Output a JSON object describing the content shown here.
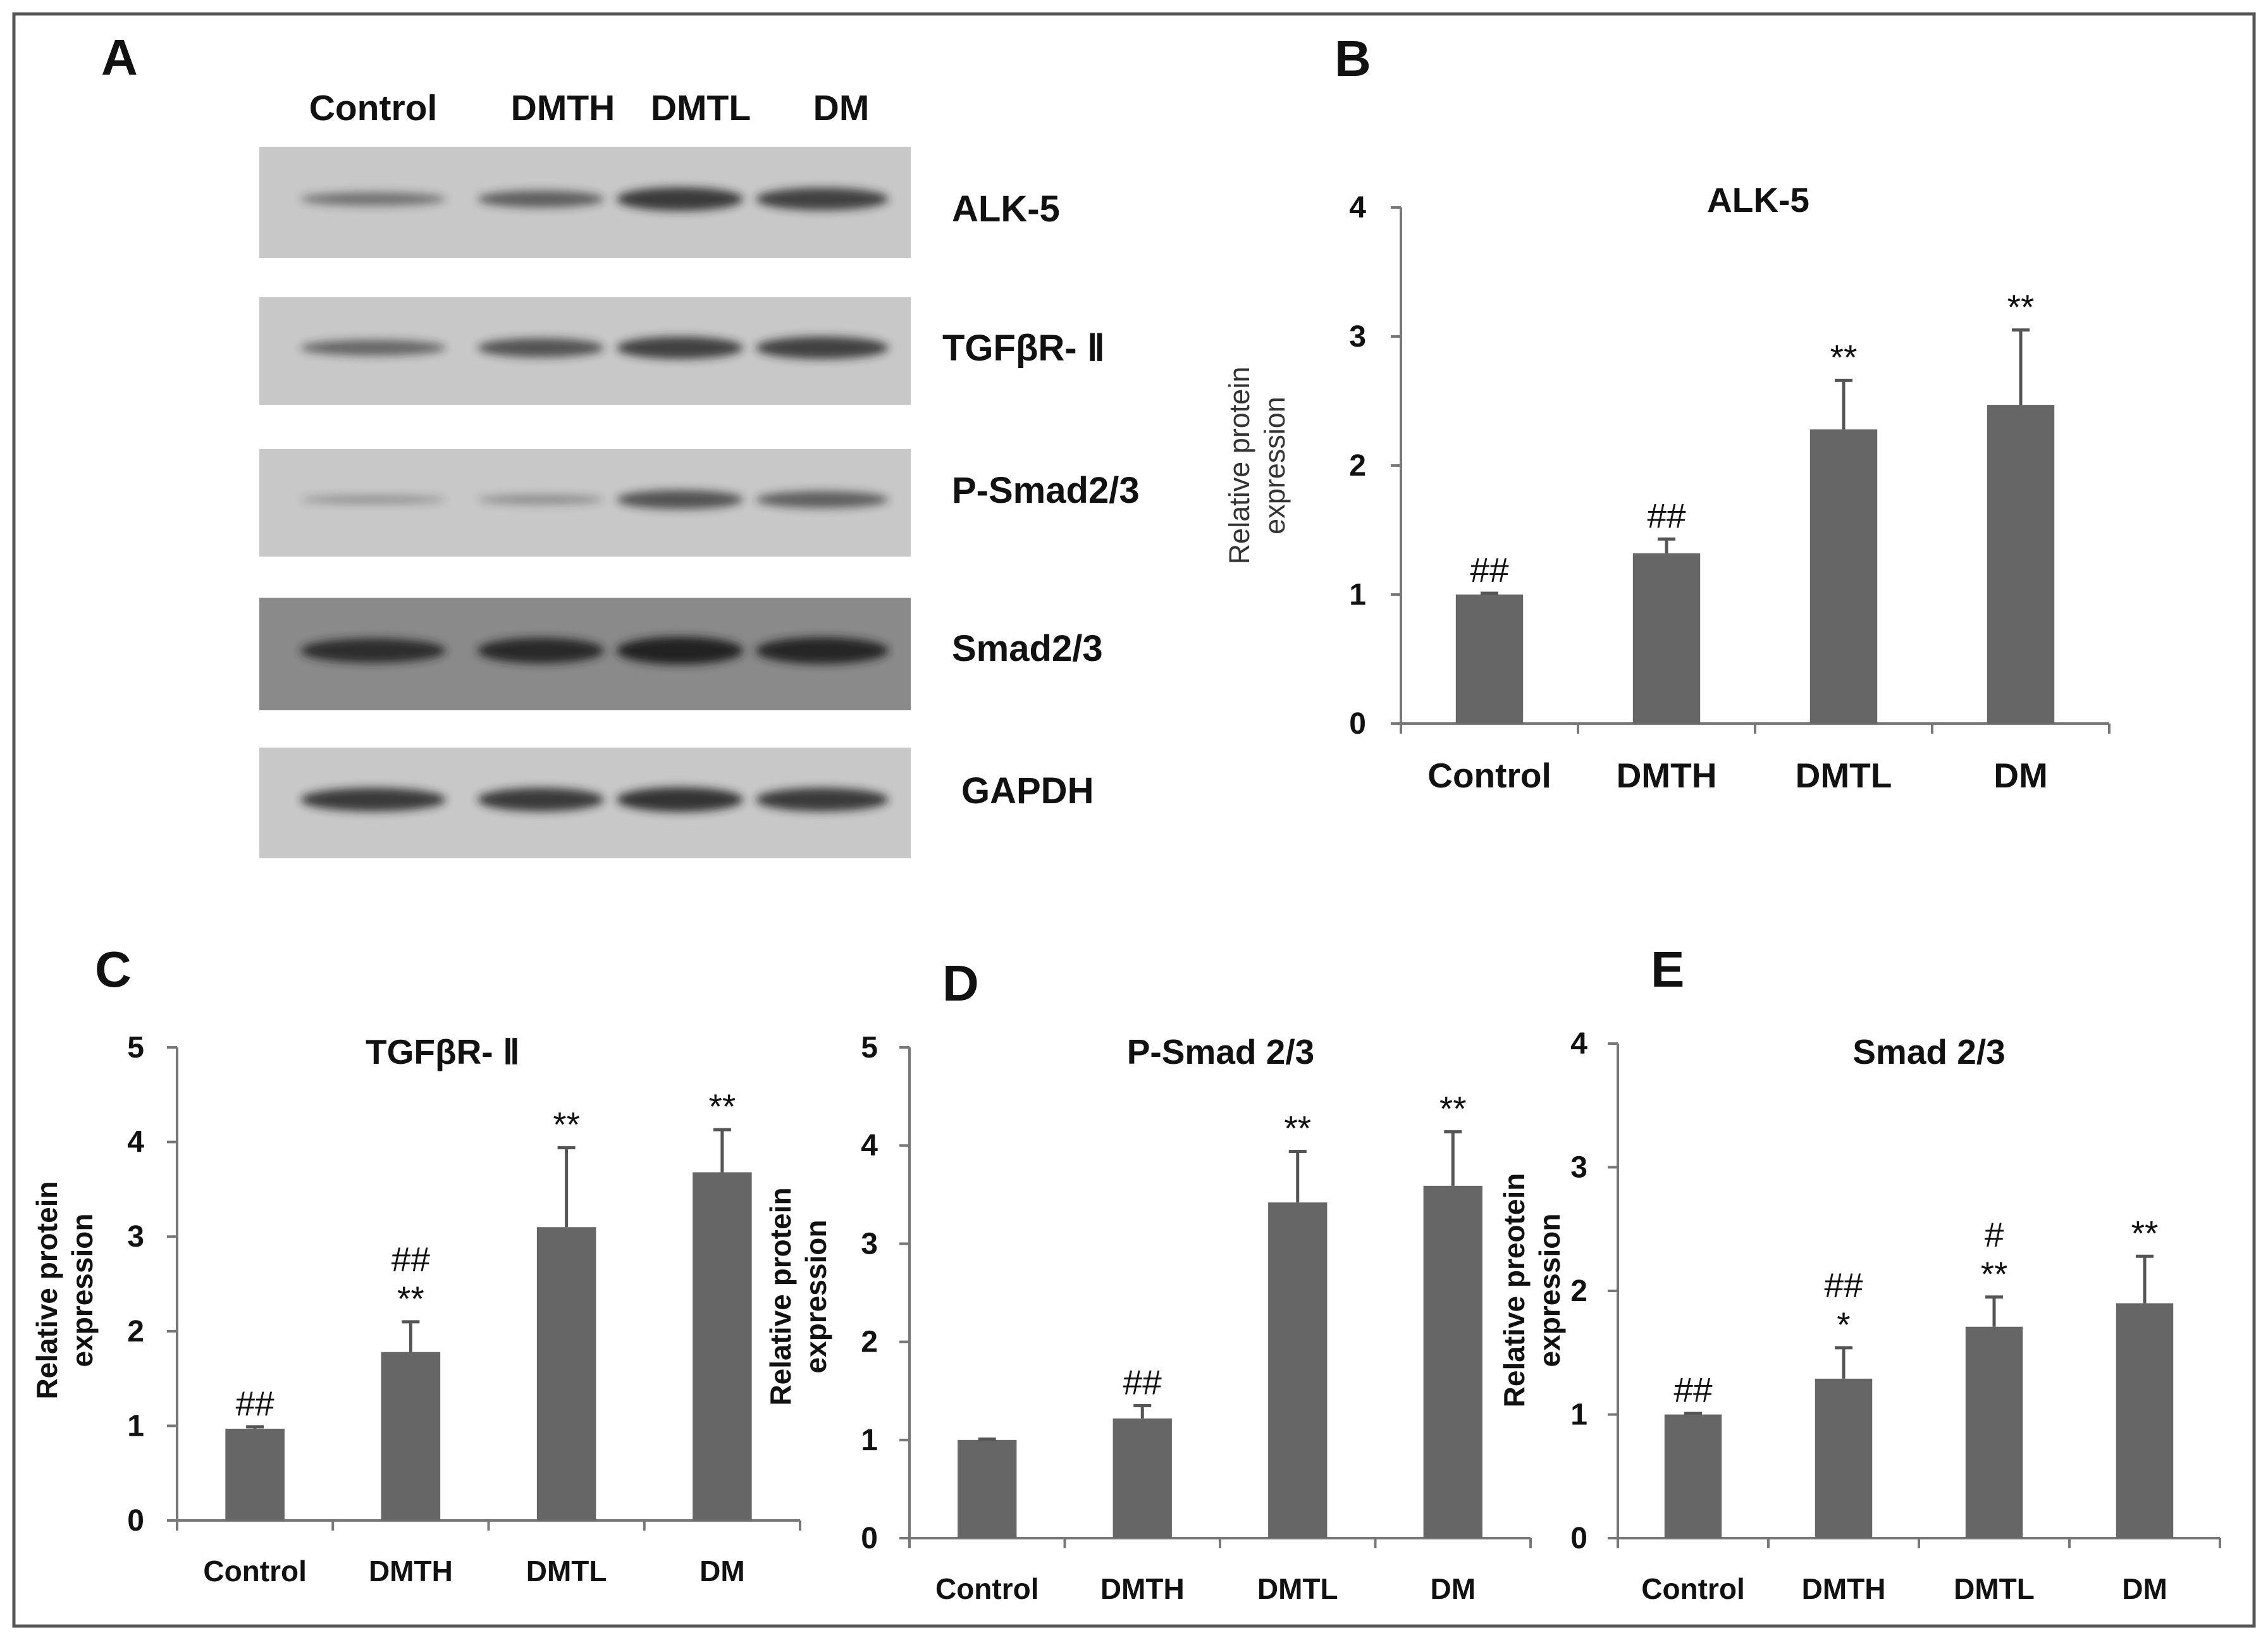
{
  "panel_letters": [
    "A",
    "B",
    "C",
    "D",
    "E"
  ],
  "blot": {
    "lanes": [
      "Control",
      "DMTH",
      "DMTL",
      "DM"
    ],
    "proteins": [
      "ALK-5",
      "TGFβR- Ⅱ",
      "P-Smad2/3",
      "Smad2/3",
      "GAPDH"
    ],
    "band_intensity": [
      [
        0.35,
        0.5,
        0.8,
        0.75
      ],
      [
        0.45,
        0.6,
        0.75,
        0.75
      ],
      [
        0.1,
        0.15,
        0.6,
        0.5
      ],
      [
        0.85,
        0.9,
        1.0,
        0.95
      ],
      [
        0.8,
        0.8,
        0.85,
        0.8
      ]
    ],
    "colors": {
      "light_bg": "#c8c8c8",
      "dark_bg": "#8a8a8a",
      "band": "#222222"
    }
  },
  "chart_data": [
    {
      "type": "bar",
      "panel": "B",
      "title": "ALK-5",
      "ylabel": "Relative protein expression",
      "categories": [
        "Control",
        "DMTH",
        "DMTL",
        "DM"
      ],
      "values": [
        1.0,
        1.32,
        2.28,
        2.47
      ],
      "errors": [
        0.01,
        0.11,
        0.38,
        0.58
      ],
      "annotations": [
        [
          "##"
        ],
        [
          "##"
        ],
        [
          "**"
        ],
        [
          "**"
        ]
      ],
      "ylim": [
        0,
        4
      ],
      "yticks": [
        "0",
        "1",
        "2",
        "3",
        "4"
      ],
      "bar_color": "#666666"
    },
    {
      "type": "bar",
      "panel": "C",
      "title": "TGFβR- Ⅱ",
      "ylabel": "Relative protein expression",
      "categories": [
        "Control",
        "DMTH",
        "DMTL",
        "DM"
      ],
      "values": [
        0.97,
        1.78,
        3.1,
        3.68
      ],
      "errors": [
        0.02,
        0.32,
        0.84,
        0.45
      ],
      "annotations": [
        [
          "##"
        ],
        [
          "##",
          "**"
        ],
        [
          "**"
        ],
        [
          "**"
        ]
      ],
      "ylim": [
        0,
        5
      ],
      "yticks": [
        "0",
        "1",
        "2",
        "3",
        "4",
        "5"
      ],
      "bar_color": "#666666"
    },
    {
      "type": "bar",
      "panel": "D",
      "title": "P-Smad 2/3",
      "ylabel": "Relative protein expression",
      "categories": [
        "Control",
        "DMTH",
        "DMTL",
        "DM"
      ],
      "values": [
        1.0,
        1.22,
        3.42,
        3.59
      ],
      "errors": [
        0.01,
        0.13,
        0.52,
        0.55
      ],
      "annotations": [
        [],
        [
          "##"
        ],
        [
          "**"
        ],
        [
          "**"
        ]
      ],
      "ylim": [
        0,
        5
      ],
      "yticks": [
        "0",
        "1",
        "2",
        "3",
        "4",
        "5"
      ],
      "bar_color": "#666666"
    },
    {
      "type": "bar",
      "panel": "E",
      "title": "Smad 2/3",
      "ylabel": "Relative preotein expression",
      "categories": [
        "Control",
        "DMTH",
        "DMTL",
        "DM"
      ],
      "values": [
        1.0,
        1.29,
        1.71,
        1.9
      ],
      "errors": [
        0.01,
        0.25,
        0.24,
        0.38
      ],
      "annotations": [
        [
          "##"
        ],
        [
          "##",
          "*"
        ],
        [
          "#",
          "**"
        ],
        [
          "**"
        ]
      ],
      "ylim": [
        0,
        4
      ],
      "yticks": [
        "0",
        "1",
        "2",
        "3",
        "4"
      ],
      "bar_color": "#666666"
    }
  ]
}
